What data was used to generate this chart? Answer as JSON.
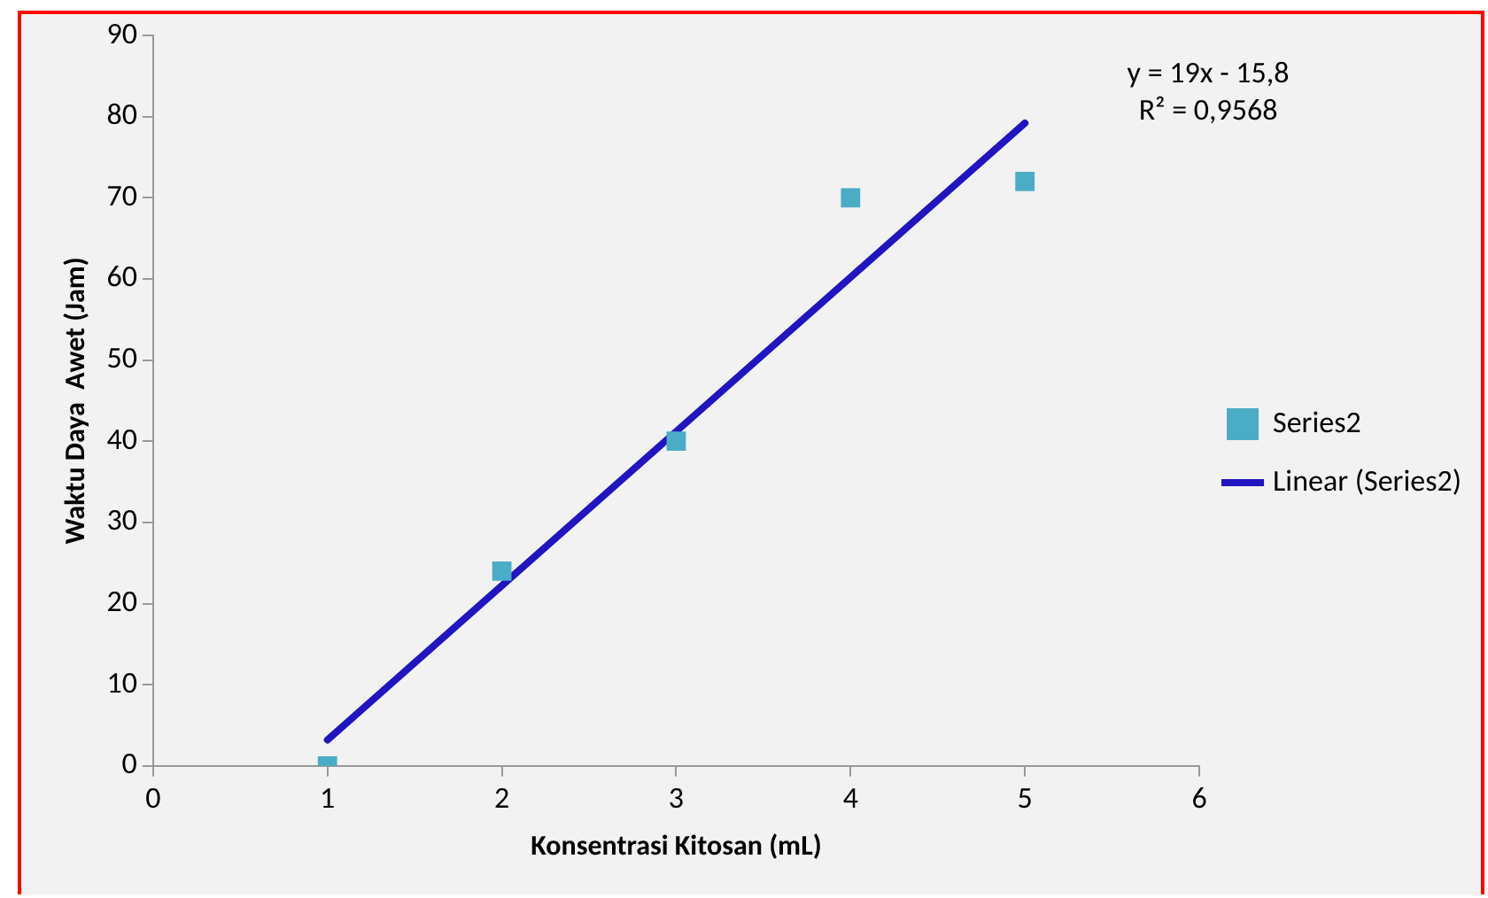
{
  "chart_data": {
    "type": "scatter",
    "xlabel": "Konsentrasi Kitosan (mL)",
    "ylabel": "Waktu Daya  Awet (Jam)",
    "x": [
      1,
      2,
      3,
      4,
      5
    ],
    "series": [
      {
        "name": "Series2",
        "color": "#4bacc6",
        "values": [
          0,
          24,
          40,
          70,
          72
        ],
        "marker": "square"
      },
      {
        "name": "Linear (Series2)",
        "type": "line",
        "color": "#2015c0",
        "x": [
          1,
          5
        ],
        "values": [
          3.2,
          79.2
        ],
        "marker": "none",
        "line_style": "solid"
      }
    ],
    "xlim": [
      0,
      6
    ],
    "xticks": [
      0,
      1,
      2,
      3,
      4,
      5,
      6
    ],
    "ylim": [
      0,
      90
    ],
    "yticks": [
      0,
      10,
      20,
      30,
      40,
      50,
      60,
      70,
      80,
      90
    ],
    "annotations": [
      "y = 19x - 15,8",
      "R² = 0,9568"
    ],
    "grid": false,
    "legend": "right"
  }
}
